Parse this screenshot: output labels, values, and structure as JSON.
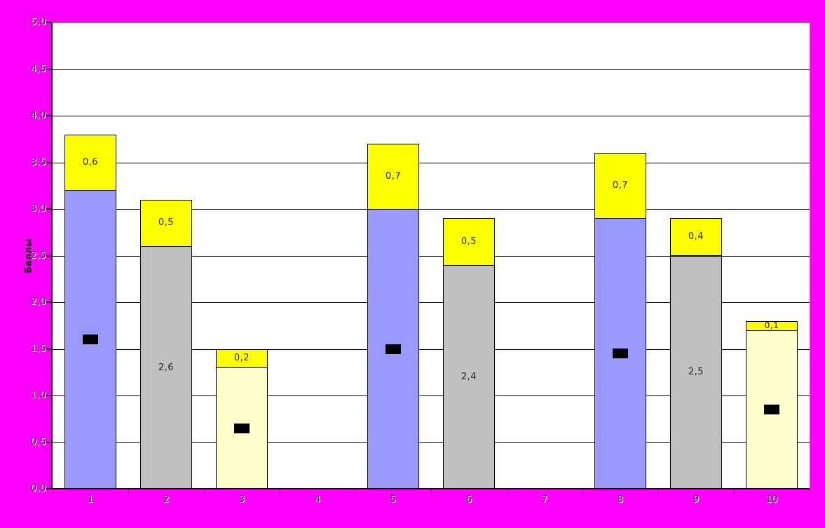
{
  "chart_data": {
    "type": "bar",
    "stacked": true,
    "title": "",
    "xlabel": "",
    "ylabel": "Баллы",
    "ylim": [
      0,
      5
    ],
    "ytick_step": 0.5,
    "decimal_separator": ",",
    "grid": "horizontal",
    "legend": "none",
    "colors": {
      "canvas_background": "#FF00FF",
      "plot_background": "#FFFFFF",
      "gridline": "#000000",
      "axis": "#000000",
      "plot_border": "#808080",
      "marker": "#000000"
    },
    "categories": [
      "1",
      "2",
      "3",
      "4",
      "5",
      "6",
      "7",
      "8",
      "9",
      "10"
    ],
    "ytick_labels": [
      "0,0",
      "0,5",
      "1,0",
      "1,5",
      "2,0",
      "2,5",
      "3,0",
      "3,5",
      "4,0",
      "4,5",
      "5,0"
    ],
    "series": [
      {
        "name": "blue-base",
        "color": "#9999FF",
        "values": [
          3.2,
          null,
          null,
          null,
          3.0,
          null,
          null,
          2.9,
          null,
          null
        ],
        "labels": [
          null,
          null,
          null,
          null,
          null,
          null,
          null,
          null,
          null,
          null
        ]
      },
      {
        "name": "gray-base",
        "color": "#C0C0C0",
        "values": [
          null,
          2.6,
          null,
          null,
          null,
          2.4,
          null,
          null,
          2.5,
          null
        ],
        "labels": [
          null,
          "2,6",
          null,
          null,
          null,
          "2,4",
          null,
          null,
          "2,5",
          null
        ]
      },
      {
        "name": "cream-base",
        "color": "#FFFFCC",
        "values": [
          null,
          null,
          1.3,
          null,
          null,
          null,
          null,
          null,
          null,
          1.7
        ],
        "labels": [
          null,
          null,
          null,
          null,
          null,
          null,
          null,
          null,
          null,
          null
        ]
      },
      {
        "name": "yellow-top",
        "color": "#FFFF00",
        "values": [
          0.6,
          0.5,
          0.2,
          null,
          0.7,
          0.5,
          null,
          0.7,
          0.4,
          0.1
        ],
        "labels": [
          "0,6",
          "0,5",
          "0,2",
          null,
          "0,7",
          "0,5",
          null,
          "0,7",
          "0,4",
          "0,1"
        ]
      }
    ],
    "markers": {
      "name": "black-rect-marker",
      "color": "#000000",
      "shape": "rect",
      "values": [
        1.6,
        null,
        0.65,
        null,
        1.5,
        null,
        null,
        1.45,
        null,
        0.85
      ]
    }
  }
}
